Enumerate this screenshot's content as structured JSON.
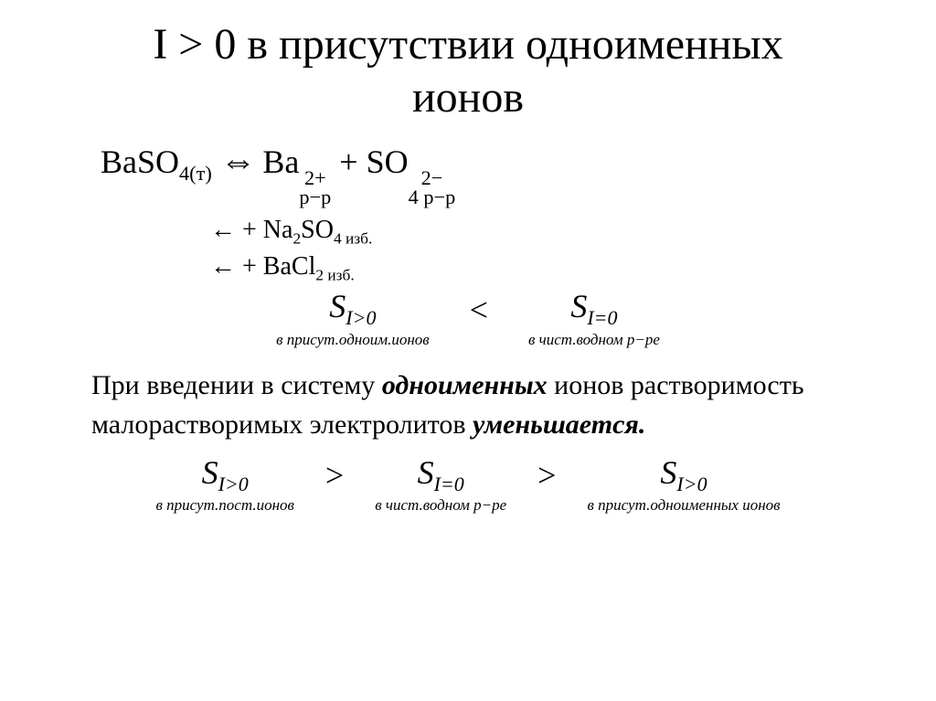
{
  "title_line1": "I > 0 в присутствии одноименных",
  "title_line2": "ионов",
  "equilibrium": {
    "lhs_species": "BaSO",
    "lhs_sub": "4(т)",
    "arrow": "⇔",
    "cation": "Ba",
    "cation_charge": "2+",
    "cation_phase": "p−p",
    "plus": "+",
    "anion_pre": "SO",
    "anion_charge": "2−",
    "anion_sub": "4",
    "anion_phase": "p−p"
  },
  "reagent1": {
    "arrow": "←",
    "text_pre": "   + Na",
    "sub1": "2",
    "mid": "SO",
    "sub2": "4",
    "suffix": " изб."
  },
  "reagent2": {
    "arrow": "←",
    "text_pre": " + BaCl",
    "sub1": "2",
    "suffix": " изб."
  },
  "comparison1": {
    "left_main": "S",
    "left_sub": "I>0",
    "left_caption": "в присут.одноим.ионов",
    "op": "<",
    "right_main": "S",
    "right_sub": "I=0",
    "right_caption": "в чист.водном р−ре"
  },
  "body": {
    "line": "При введении в систему ",
    "emph1": "одноименных",
    "line_cont": " ионов растворимость малорастворимых электролитов ",
    "emph2": "уменьшается."
  },
  "comparison2": {
    "t1_main": "S",
    "t1_sub": "I>0",
    "t1_caption": "в присут.пост.ионов",
    "op1": ">",
    "t2_main": "S",
    "t2_sub": "I=0",
    "t2_caption": "в чист.водном р−ре",
    "op2": ">",
    "t3_main": "S",
    "t3_sub": "I>0",
    "t3_caption": "в присут.одноименных ионов"
  },
  "colors": {
    "text": "#000000",
    "background": "#ffffff"
  },
  "fonts": {
    "family": "Times New Roman",
    "title_size_pt": 36,
    "body_size_pt": 22
  }
}
